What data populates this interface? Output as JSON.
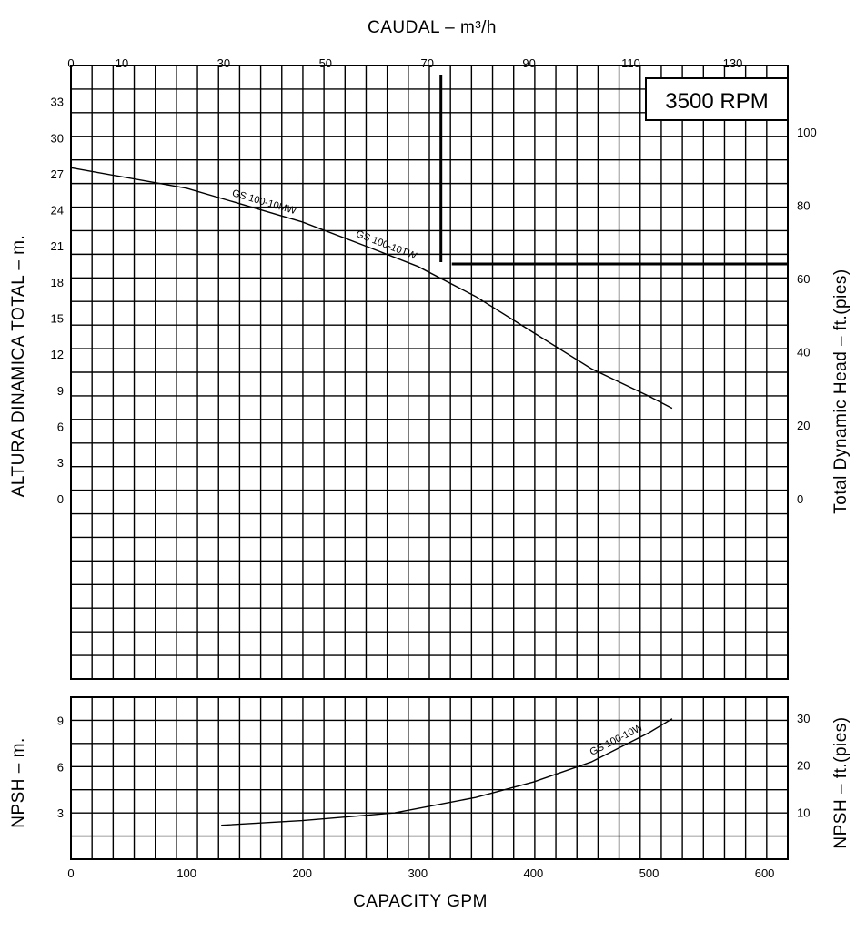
{
  "chart_data": {
    "type": "line",
    "speed_label": "3500 RPM",
    "top_axis": {
      "title": "CAUDAL  – m³/h",
      "ticks": [
        0,
        10,
        30,
        50,
        70,
        90,
        110,
        130
      ]
    },
    "bottom_axis": {
      "title": "CAPACITY GPM",
      "range": [
        0,
        620
      ],
      "ticks": [
        0,
        100,
        200,
        300,
        400,
        500,
        600
      ]
    },
    "head_panel": {
      "ylabel_left": "ALTURA DINAMICA TOTAL – m.",
      "ylabel_right": "Total Dynamic Head – ft.(pies)",
      "ylim_m": [
        -15,
        36
      ],
      "left_ticks": [
        33,
        30,
        27,
        24,
        21,
        18,
        15,
        12,
        9,
        6,
        3,
        0
      ],
      "right_ticks": [
        100,
        80,
        60,
        40,
        20,
        0
      ],
      "series": [
        {
          "labels": [
            "GS 100-10MW",
            "GS 100-10TW"
          ],
          "x": [
            0,
            100,
            200,
            260,
            300,
            350,
            400,
            450,
            500,
            520
          ],
          "y": [
            27.5,
            25.8,
            23.0,
            20.8,
            19.3,
            16.8,
            13.8,
            10.8,
            8.5,
            7.5
          ]
        }
      ],
      "reference_lines": {
        "vertical_x": 320,
        "horizontal_y": 19.5
      }
    },
    "npsh_panel": {
      "ylabel_left": "NPSH – m.",
      "ylabel_right": "NPSH – ft.(pies)",
      "ylim_m": [
        0,
        10.5
      ],
      "left_ticks": [
        9,
        6,
        3
      ],
      "right_ticks": [
        30,
        20,
        10
      ],
      "series": [
        {
          "label": "GS 100-10W",
          "x": [
            130,
            200,
            280,
            350,
            400,
            450,
            500,
            520
          ],
          "y": [
            2.2,
            2.5,
            3.0,
            4.0,
            5.0,
            6.3,
            8.2,
            9.1
          ]
        }
      ]
    }
  }
}
